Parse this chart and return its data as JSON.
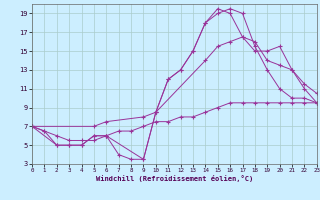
{
  "background_color": "#cceeff",
  "grid_color": "#aacccc",
  "line_color": "#993399",
  "xlabel": "Windchill (Refroidissement éolien,°C)",
  "xlim": [
    0,
    23
  ],
  "ylim": [
    3,
    20
  ],
  "xticks": [
    0,
    1,
    2,
    3,
    4,
    5,
    6,
    7,
    8,
    9,
    10,
    11,
    12,
    13,
    14,
    15,
    16,
    17,
    18,
    19,
    20,
    21,
    22,
    23
  ],
  "yticks": [
    3,
    5,
    7,
    9,
    11,
    13,
    15,
    17,
    19
  ],
  "curves": [
    {
      "x": [
        0,
        1,
        2,
        3,
        4,
        5,
        6,
        7,
        8,
        9,
        10,
        11,
        12,
        13,
        14,
        15,
        16,
        17,
        18,
        19,
        20,
        21,
        22,
        23
      ],
      "y": [
        7,
        6.5,
        5,
        5,
        5,
        6,
        6,
        4,
        3.5,
        3.5,
        8.5,
        12,
        13,
        15,
        18,
        19,
        19.5,
        19,
        15.5,
        13,
        11,
        10,
        10,
        9.5
      ]
    },
    {
      "x": [
        0,
        2,
        3,
        4,
        5,
        6,
        9,
        10,
        11,
        12,
        13,
        14,
        15,
        16,
        17,
        18,
        19,
        20,
        21,
        22,
        23
      ],
      "y": [
        7,
        5,
        5,
        5,
        6,
        6,
        3.5,
        8.5,
        12,
        13,
        15,
        18,
        19.5,
        19,
        16.5,
        15,
        15,
        15.5,
        13,
        11,
        9.5
      ]
    },
    {
      "x": [
        0,
        5,
        6,
        9,
        10,
        14,
        15,
        16,
        17,
        18,
        19,
        20,
        21,
        22,
        23
      ],
      "y": [
        7,
        7,
        7.5,
        8,
        8.5,
        14,
        15.5,
        16,
        16.5,
        16,
        14,
        13.5,
        13,
        11.5,
        10.5
      ]
    },
    {
      "x": [
        0,
        1,
        2,
        3,
        4,
        5,
        6,
        7,
        8,
        9,
        10,
        11,
        12,
        13,
        14,
        15,
        16,
        17,
        18,
        19,
        20,
        21,
        22,
        23
      ],
      "y": [
        7,
        6.5,
        6,
        5.5,
        5.5,
        5.5,
        6,
        6.5,
        6.5,
        7,
        7.5,
        7.5,
        8,
        8,
        8.5,
        9,
        9.5,
        9.5,
        9.5,
        9.5,
        9.5,
        9.5,
        9.5,
        9.5
      ]
    }
  ]
}
